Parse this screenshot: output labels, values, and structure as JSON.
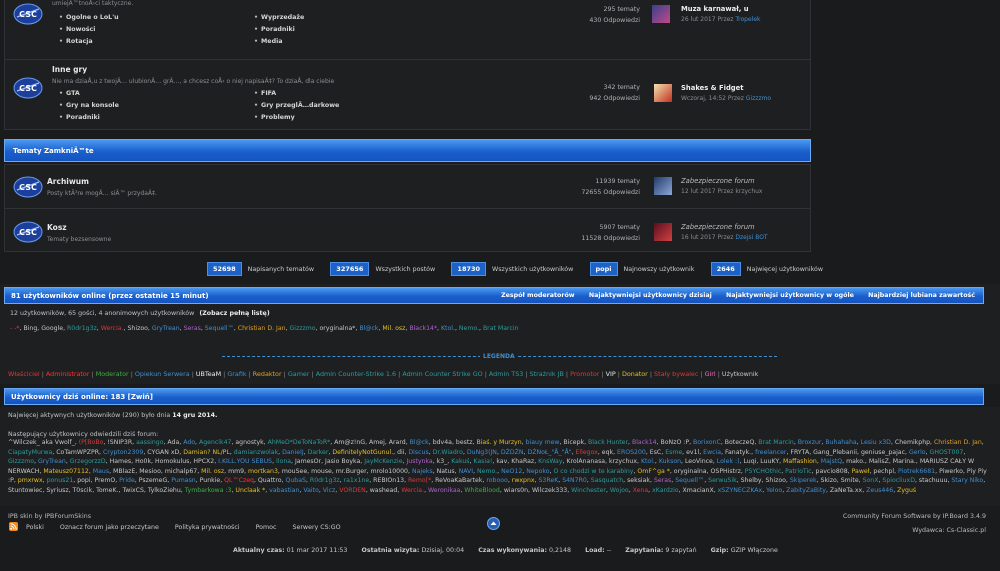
{
  "forums": [
    {
      "desc": "umiejÄ™tnoÅ›ci taktyczne.",
      "subs": [
        "Ogolne o LoL'u",
        "Wyprzedaże",
        "Nowości",
        "Poradniki",
        "Rotacja",
        "Media"
      ],
      "topics": "295 tematy",
      "posts": "430 Odpowiedzi",
      "lp_title": "Muza karnawał, u",
      "lp_date": "26 lut 2017",
      "lp_by": "Przez",
      "lp_user": "Tropelek"
    },
    {
      "name": "Inne gry",
      "desc": "Nie ma dziaÅ‚u z twojÄ… ulubionÄ… grÄ…, a chcesz coÅ› o niej napisaÄ‡? To dziaÅ‚ dla ciebie",
      "subs": [
        "GTA",
        "FIFA",
        "Gry na konsole",
        "Gry przeglÄ…darkowe",
        "Poradniki",
        "Problemy"
      ],
      "topics": "342 tematy",
      "posts": "942 Odpowiedzi",
      "lp_title": "Shakes & Fidget",
      "lp_date": "Wczoraj, 14:52",
      "lp_by": "Przez",
      "lp_user": "Gizzzmo"
    }
  ],
  "closed_title": "Tematy ZamkniÄ™te",
  "closed": [
    {
      "name": "Archiwum",
      "desc": "Posty ktÃ³re mogÄ… siÄ™ przydaÄ‡.",
      "topics": "11939 tematy",
      "posts": "72655 Odpowiedzi",
      "lp_title": "Zabezpieczone forum",
      "lp_date": "12 lut 2017",
      "lp_by": "Przez",
      "lp_user": "krzychux"
    },
    {
      "name": "Kosz",
      "desc": "Tematy bezsensowne",
      "topics": "5907 tematy",
      "posts": "11528 Odpowiedzi",
      "lp_title": "Zabezpieczone forum",
      "lp_date": "16 lut 2017",
      "lp_by": "Przez",
      "lp_user": "Dzejsi BOT"
    }
  ],
  "stats": [
    {
      "n": "52698",
      "l": "Napisanych tematów"
    },
    {
      "n": "327656",
      "l": "Wszystkich postów"
    },
    {
      "n": "18730",
      "l": "Wszystkich użytkowników"
    },
    {
      "n": "popi",
      "l": "Najnowszy użytkownik"
    },
    {
      "n": "2646",
      "l": "Najwięcej użytkowników"
    }
  ],
  "online": {
    "title": "81 użytkowników online (przez ostatnie 15 minut)",
    "links": [
      "Zespół moderatorów",
      "Najaktywniejsi użytkownicy dzisiaj",
      "Najaktywniejsi użytkownicy w ogóle",
      "Najbardziej lubiana zawartość"
    ],
    "summary": "12 użytkowników, 65 gości, 4 anonimowych użytkowników",
    "full_list": "(Zobacz pełną listę)",
    "users": [
      [
        "- -*",
        "#e04040"
      ],
      [
        "Bing",
        "#c8c8c8"
      ],
      [
        "Google",
        "#c8c8c8"
      ],
      [
        "R0dr1g3z",
        "#2c9c9c"
      ],
      [
        "Wercia.",
        "#d83a3a"
      ],
      [
        "Shizoo",
        "#c8c8c8"
      ],
      [
        "GryTrean",
        "#3f8fd2"
      ],
      [
        "Seras",
        "#b060d0"
      ],
      [
        "Sequell™",
        "#3f8fd2"
      ],
      [
        "Christian D. Jan",
        "#e0a020"
      ],
      [
        "Gizzzmo",
        "#2c9c9c"
      ],
      [
        "oryginalna*",
        "#c8c8c8"
      ],
      [
        "Bl@ck",
        "#3f8fd2"
      ],
      [
        "Mil. osz",
        "#e8c020"
      ],
      [
        "Black14*",
        "#b060d0"
      ],
      [
        "Ktol.",
        "#3f8fd2"
      ],
      [
        "Nemo.",
        "#2c9c9c"
      ],
      [
        "Brat Marcin",
        "#2c9c9c"
      ]
    ],
    "legend_title": "LEGENDA",
    "legend": [
      [
        "Właściciel",
        "#d83a3a"
      ],
      [
        "Administrator",
        "#ff3030"
      ],
      [
        "Moderator",
        "#3cb043"
      ],
      [
        "Opiekun Serwera",
        "#3f8fd2"
      ],
      [
        "UBTeaM",
        "#f0f0f0"
      ],
      [
        "Grafik",
        "#3f8fd2"
      ],
      [
        "Redaktor",
        "#e0a020"
      ],
      [
        "Gamer",
        "#2c9c9c"
      ],
      [
        "Admin Counter-Strike 1.6",
        "#2c9c9c"
      ],
      [
        "Admin Counter Strike GO",
        "#2c9c9c"
      ],
      [
        "Admin TS3",
        "#2c9c9c"
      ],
      [
        "Strażnik JB",
        "#2c9c9c"
      ],
      [
        "Promotor",
        "#d83a3a"
      ],
      [
        "VIP",
        "#e8e8e8"
      ],
      [
        "Donator",
        "#e8c020"
      ],
      [
        "Stały bywalec",
        "#d83a3a"
      ],
      [
        "Girl",
        "#ff66cc"
      ],
      [
        "Użytkownik",
        "#c8c8c8"
      ]
    ]
  },
  "today": {
    "title": "Użytkownicy dziś online: 183 [Zwiń]",
    "record_pre": "Najwięcej aktywnych użytkowników (290) było dnia",
    "record_date": "14 gru 2014.",
    "visited": "Następujący użytkownicy odwiedzili dziś forum:",
    "users": [
      [
        "^Wilczek_ aka Vwolf_",
        "#c8c8c8"
      ],
      [
        "(P[BoBo",
        "#d83a3a"
      ],
      [
        "!SNIP3R",
        "#c8c8c8"
      ],
      [
        "aassingo",
        "#2c9c9c"
      ],
      [
        "Ada",
        "#c8c8c8"
      ],
      [
        "Ado",
        "#3f8fd2"
      ],
      [
        "Agencik47",
        "#2c9c9c"
      ],
      [
        "agnostyk",
        "#c8c8c8"
      ],
      [
        "AhMeD*DeToNaToR*",
        "#2c9c9c"
      ],
      [
        "Am@z!nG",
        "#c8c8c8"
      ],
      [
        "Amej",
        "#c8c8c8"
      ],
      [
        "Arard",
        "#c8c8c8"
      ],
      [
        "Bl@ck",
        "#3f8fd2"
      ],
      [
        "bdv4a",
        "#c8c8c8"
      ],
      [
        "bestz",
        "#c8c8c8"
      ],
      [
        "Biaś. y Murzyn",
        "#e8c020"
      ],
      [
        "biauy mew",
        "#3f8fd2"
      ],
      [
        "Bicepk",
        "#c8c8c8"
      ],
      [
        "Black Hunter",
        "#2c9c9c"
      ],
      [
        "Black14",
        "#b060d0"
      ],
      [
        "BoNzO :P",
        "#c8c8c8"
      ],
      [
        "BorixonC",
        "#3f8fd2"
      ],
      [
        "BoteczeQ",
        "#c8c8c8"
      ],
      [
        "Brat Marcin",
        "#2c9c9c"
      ],
      [
        "Broxzur",
        "#3f8fd2"
      ],
      [
        "Buhahaha",
        "#3f8fd2"
      ],
      [
        "Lesiu x3D",
        "#3f8fd2"
      ],
      [
        "Chemikphp",
        "#c8c8c8"
      ],
      [
        "Christian D. Jan",
        "#e0a020"
      ],
      [
        "CiapatyMurwa",
        "#2c9c9c"
      ],
      [
        "CoTamWPZPR",
        "#c8c8c8"
      ],
      [
        "Crypton2309",
        "#3f8fd2"
      ],
      [
        "CYGAN xD",
        "#c8c8c8"
      ],
      [
        "Damian? NL/PL",
        "#e8c020"
      ],
      [
        "damianzwolak",
        "#2c9c9c"
      ],
      [
        "DanielJ",
        "#3f8fd2"
      ],
      [
        "Darker",
        "#2c9c9c"
      ],
      [
        "DefinitelyNotGunul.",
        "#e8c020"
      ],
      [
        "dii",
        "#c8c8c8"
      ],
      [
        "Discus",
        "#3f8fd2"
      ],
      [
        "Dr.Wiadro",
        "#2c9c9c"
      ],
      [
        "DuNg3(JN",
        "#3f8fd2"
      ],
      [
        "DŻDŻN",
        "#3f8fd2"
      ],
      [
        "DŻNoŁ_\"Å_\"Å\"",
        "#3f8fd2"
      ],
      [
        "Ellegox",
        "#d83a3a"
      ],
      [
        "eqk",
        "#c8c8c8"
      ],
      [
        "EROS200",
        "#3f8fd2"
      ],
      [
        "EsC",
        "#c8c8c8"
      ],
      [
        "Esme",
        "#2c9c9c"
      ],
      [
        "ev1l",
        "#c8c8c8"
      ],
      [
        "Ewcia",
        "#3f8fd2"
      ],
      [
        "Fanatyk.",
        "#c8c8c8"
      ],
      [
        "freelancer",
        "#3f8fd2"
      ],
      [
        "FRYTA",
        "#c8c8c8"
      ],
      [
        "Gang_Plebanii",
        "#c8c8c8"
      ],
      [
        "geniuse_pajac",
        "#c8c8c8"
      ],
      [
        "Gerlo",
        "#3f8fd2"
      ],
      [
        "GHOST007",
        "#2c9c9c"
      ],
      [
        "Gizzzmo",
        "#2c9c9c"
      ],
      [
        "GryTrean",
        "#3f8fd2"
      ],
      [
        "GrzegorzzD",
        "#2c9c9c"
      ],
      [
        "Hames",
        "#c8c8c8"
      ],
      [
        "Ho0k",
        "#c8c8c8"
      ],
      [
        "Homokulus",
        "#c8c8c8"
      ],
      [
        "HPCX2",
        "#c8c8c8"
      ],
      [
        "I.KILL.YOU SEBUS",
        "#3f8fd2"
      ],
      [
        "Ilona",
        "#2c9c9c"
      ],
      [
        "JamesOr",
        "#c8c8c8"
      ],
      [
        "Jasio Boyka",
        "#c8c8c8"
      ],
      [
        "JayMcKenzie",
        "#2c9c9c"
      ],
      [
        "Justynka",
        "#b060d0"
      ],
      [
        "k3_",
        "#c8c8c8"
      ],
      [
        "Kakuś",
        "#2c9c9c"
      ],
      [
        "Kasia!",
        "#2c9c9c"
      ],
      [
        "kav",
        "#c8c8c8"
      ],
      [
        "KhaRaz",
        "#c8c8c8"
      ],
      [
        "KnsWay",
        "#2c9c9c"
      ],
      [
        "KrolAnanasa",
        "#c8c8c8"
      ],
      [
        "krzychux",
        "#c8c8c8"
      ],
      [
        "Ktol.",
        "#3f8fd2"
      ],
      [
        "Kukson",
        "#3f8fd2"
      ],
      [
        "LeoVince",
        "#c8c8c8"
      ],
      [
        "Lolek :)",
        "#3f8fd2"
      ],
      [
        "Luqi",
        "#c8c8c8"
      ],
      [
        "LuuKY",
        "#c8c8c8"
      ],
      [
        "Maffashion",
        "#e8c020"
      ],
      [
        "MajstQ",
        "#3f8fd2"
      ],
      [
        "mako.",
        "#c8c8c8"
      ],
      [
        "MalisZ",
        "#c8c8c8"
      ],
      [
        "Marina.",
        "#c8c8c8"
      ],
      [
        "MARIUSZ CAŁY W NERWACH",
        "#c8c8c8"
      ],
      [
        "Mateusz07112",
        "#e8c020"
      ],
      [
        "Maus",
        "#3f8fd2"
      ],
      [
        "MBlazE",
        "#c8c8c8"
      ],
      [
        "Mesioo",
        "#c8c8c8"
      ],
      [
        "michalp67",
        "#c8c8c8"
      ],
      [
        "Mil. osz",
        "#e8c020"
      ],
      [
        "mm9",
        "#c8c8c8"
      ],
      [
        "mortkan3",
        "#e8c020"
      ],
      [
        "mouSee",
        "#c8c8c8"
      ],
      [
        "mouse",
        "#c8c8c8"
      ],
      [
        "mr.Burger",
        "#c8c8c8"
      ],
      [
        "mrolo10000",
        "#c8c8c8"
      ],
      [
        "Najeks",
        "#3f8fd2"
      ],
      [
        "Natus",
        "#c8c8c8"
      ],
      [
        "NAVI",
        "#3f8fd2"
      ],
      [
        "Nemo.",
        "#2c9c9c"
      ],
      [
        "NeO12",
        "#3f8fd2"
      ],
      [
        "Nepoko",
        "#3f8fd2"
      ],
      [
        "O co chodzi w te karabiny",
        "#2c9c9c"
      ],
      [
        "OmF^ga *",
        "#e8c020"
      ],
      [
        "oryginalna",
        "#c8c8c8"
      ],
      [
        "OSPHistrz",
        "#c8c8c8"
      ],
      [
        "P5YCHOthic",
        "#2c9c9c"
      ],
      [
        "PatrioTic",
        "#2c9c9c"
      ],
      [
        "pavcio808",
        "#c8c8c8"
      ],
      [
        "Paweł",
        "#e8c020"
      ],
      [
        "pechpl",
        "#c8c8c8"
      ],
      [
        "Piotrek6681",
        "#3f8fd2"
      ],
      [
        "Piwerko",
        "#c8c8c8"
      ],
      [
        "Piy Piy :P",
        "#c8c8c8"
      ],
      [
        "pmxrwx",
        "#e8c020"
      ],
      [
        "ponus21",
        "#2c9c9c"
      ],
      [
        "popi",
        "#c8c8c8"
      ],
      [
        "PremO",
        "#c8c8c8"
      ],
      [
        "Pride",
        "#3f8fd2"
      ],
      [
        "PszemeG",
        "#c8c8c8"
      ],
      [
        "Pumasn",
        "#3f8fd2"
      ],
      [
        "Punkie",
        "#c8c8c8"
      ],
      [
        "QL™Czeq",
        "#ff3030"
      ],
      [
        "Quattro",
        "#c8c8c8"
      ],
      [
        "QubaS",
        "#3f8fd2"
      ],
      [
        "R0dr1g3z",
        "#2c9c9c"
      ],
      [
        "ra1x1ne",
        "#2c9c9c"
      ],
      [
        "REBIOn13",
        "#c8c8c8"
      ],
      [
        "Remo[*",
        "#d83a3a"
      ],
      [
        "ReVoaKaBartek",
        "#c8c8c8"
      ],
      [
        "robooo",
        "#3f8fd2"
      ],
      [
        "rwxpnx",
        "#e8c020"
      ],
      [
        "S3ReK",
        "#3f8fd2"
      ],
      [
        "S4N7R0",
        "#3f8fd2"
      ],
      [
        "Sasquatch",
        "#2c9c9c"
      ],
      [
        "seksiak",
        "#c8c8c8"
      ],
      [
        "Seras",
        "#b060d0"
      ],
      [
        "Sequell™",
        "#3f8fd2"
      ],
      [
        "SerwuSik",
        "#2c9c9c"
      ],
      [
        "Shelby",
        "#c8c8c8"
      ],
      [
        "Shizoo",
        "#c8c8c8"
      ],
      [
        "Skiperek",
        "#3f8fd2"
      ],
      [
        "Skizo",
        "#c8c8c8"
      ],
      [
        "Smite",
        "#c8c8c8"
      ],
      [
        "SonX",
        "#2c9c9c"
      ],
      [
        "SpiocliuxD",
        "#2c9c9c"
      ],
      [
        "stachuuu",
        "#c8c8c8"
      ],
      [
        "Stary Niko",
        "#3f8fd2"
      ],
      [
        "Stuntowiec",
        "#c8c8c8"
      ],
      [
        "Syriusz",
        "#c8c8c8"
      ],
      [
        "T0scik",
        "#c8c8c8"
      ],
      [
        "TomeK.",
        "#c8c8c8"
      ],
      [
        "TwixCS",
        "#c8c8c8"
      ],
      [
        "TylkoZiehu",
        "#c8c8c8"
      ],
      [
        "Tymbarkowa :3",
        "#3cb043"
      ],
      [
        "Unclaak *",
        "#e8c020"
      ],
      [
        "vabastian",
        "#3f8fd2"
      ],
      [
        "Vaito",
        "#3f8fd2"
      ],
      [
        "Vicz",
        "#3f8fd2"
      ],
      [
        "VORDEN",
        "#d83a3a"
      ],
      [
        "washead",
        "#c8c8c8"
      ],
      [
        "Wercia.",
        "#d83a3a"
      ],
      [
        "Weronikaa",
        "#b060d0"
      ],
      [
        "WhiteBlood",
        "#3cb043"
      ],
      [
        "wiars0n",
        "#c8c8c8"
      ],
      [
        "Wilczek333",
        "#c8c8c8"
      ],
      [
        "Winchester",
        "#2c9c9c"
      ],
      [
        "Wojoo",
        "#2c9c9c"
      ],
      [
        "Xena",
        "#d83a3a"
      ],
      [
        "xKardzio",
        "#2c9c9c"
      ],
      [
        "XmacianX",
        "#c8c8c8"
      ],
      [
        "xSZYNECZKAx",
        "#3f8fd2"
      ],
      [
        "Yeloo",
        "#3f8fd2"
      ],
      [
        "ZabityZaBity",
        "#3f8fd2"
      ],
      [
        "ZaNeTa.xx",
        "#c8c8c8"
      ],
      [
        "Zeus446",
        "#3f8fd2"
      ],
      [
        "Zyguś",
        "#e8c020"
      ]
    ]
  },
  "footer": {
    "skin": "IPB skin by IPBForumSkins",
    "software": "Community Forum Software by IP.Board 3.4.9",
    "publisher": "Wydawca: Cs-Classic.pl",
    "links": [
      "Polski",
      "Oznacz forum jako przeczytane",
      "Polityka prywatności",
      "Pomoc",
      "Serwery CS:GO"
    ],
    "time_label": "Aktualny czas:",
    "time": "01 mar 2017 11:53",
    "visit_label": "Ostatnia wizyta:",
    "visit": "Dzisiaj, 00:04",
    "exec_label": "Czas wykonywania:",
    "exec": "0,2148",
    "load_label": "Load:",
    "load": "--",
    "queries_label": "Zapytania:",
    "queries": "9 zapytań",
    "gzip_label": "Gzip:",
    "gzip": "GZIP Włączone"
  }
}
